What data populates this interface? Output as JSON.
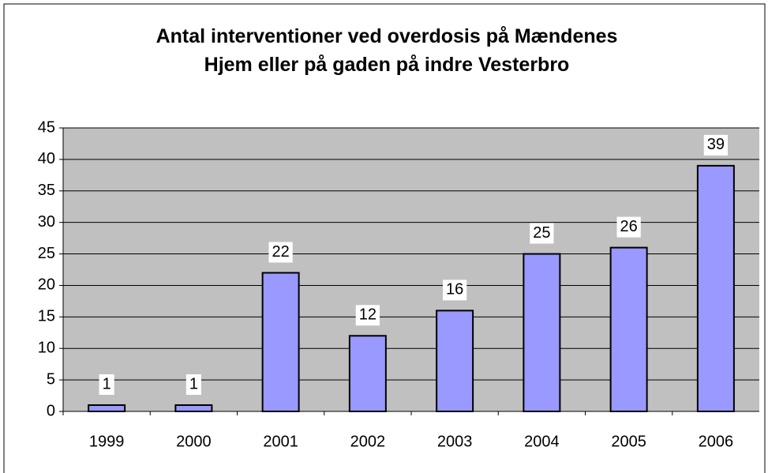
{
  "chart_data": {
    "type": "bar",
    "title": "Antal interventioner ved overdosis på Mændenes Hjem eller på gaden på indre Vesterbro",
    "categories": [
      "1999",
      "2000",
      "2001",
      "2002",
      "2003",
      "2004",
      "2005",
      "2006"
    ],
    "values": [
      1,
      1,
      22,
      12,
      16,
      25,
      26,
      39
    ],
    "color": "#9999ff",
    "ylim": [
      0,
      45
    ],
    "yticks": [
      0,
      5,
      10,
      15,
      20,
      25,
      30,
      35,
      40,
      45
    ],
    "grid": true,
    "data_labels": true
  }
}
